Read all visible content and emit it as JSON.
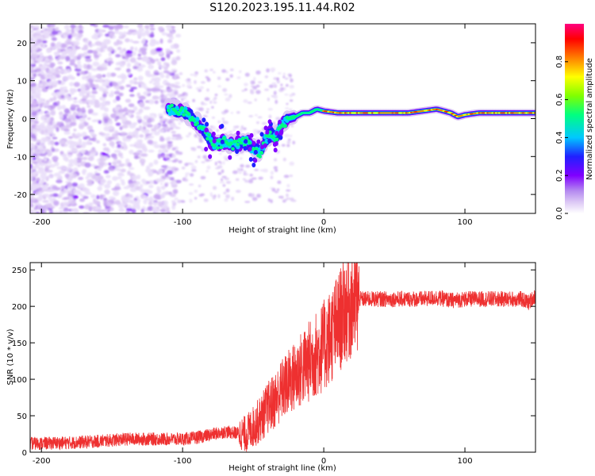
{
  "title": "S120.2023.195.11.44.R02",
  "chart_data": [
    {
      "type": "heatmap",
      "xlabel": "Height of straight line (km)",
      "ylabel": "Frequency (Hz)",
      "xlim": [
        -208,
        150
      ],
      "ylim": [
        -25,
        25
      ],
      "xticks": [
        -200,
        -100,
        0,
        100
      ],
      "yticks": [
        -20,
        -10,
        0,
        10,
        20
      ],
      "colorbar": {
        "label": "Normalized spectral amplitude",
        "range": [
          0,
          1
        ],
        "ticks": [
          0.0,
          0.2,
          0.4,
          0.6,
          0.8
        ],
        "colormap": [
          "#ffffff",
          "#dcc8f5",
          "#b488f0",
          "#8000ff",
          "#2020ff",
          "#00c8ff",
          "#00ff80",
          "#80ff00",
          "#ffff00",
          "#ff8000",
          "#ff0000",
          "#ff0080"
        ]
      },
      "ridge": [
        {
          "x": -110,
          "f": 2.5
        },
        {
          "x": -100,
          "f": 2.0
        },
        {
          "x": -92,
          "f": 0.0
        },
        {
          "x": -85,
          "f": -3.0
        },
        {
          "x": -80,
          "f": -6.0
        },
        {
          "x": -75,
          "f": -7.0
        },
        {
          "x": -70,
          "f": -6.0
        },
        {
          "x": -65,
          "f": -7.0
        },
        {
          "x": -60,
          "f": -6.5
        },
        {
          "x": -55,
          "f": -6.0
        },
        {
          "x": -50,
          "f": -8.0
        },
        {
          "x": -45,
          "f": -9.0
        },
        {
          "x": -42,
          "f": -6.0
        },
        {
          "x": -38,
          "f": -4.0
        },
        {
          "x": -34,
          "f": -5.0
        },
        {
          "x": -30,
          "f": -2.0
        },
        {
          "x": -25,
          "f": 0.0
        },
        {
          "x": -20,
          "f": 0.5
        },
        {
          "x": -15,
          "f": 1.5
        },
        {
          "x": -10,
          "f": 1.5
        },
        {
          "x": -5,
          "f": 2.5
        },
        {
          "x": 0,
          "f": 2.0
        },
        {
          "x": 10,
          "f": 1.5
        },
        {
          "x": 20,
          "f": 1.5
        },
        {
          "x": 30,
          "f": 1.5
        },
        {
          "x": 40,
          "f": 1.5
        },
        {
          "x": 50,
          "f": 1.5
        },
        {
          "x": 60,
          "f": 1.5
        },
        {
          "x": 70,
          "f": 2.0
        },
        {
          "x": 80,
          "f": 2.5
        },
        {
          "x": 90,
          "f": 1.5
        },
        {
          "x": 95,
          "f": 0.5
        },
        {
          "x": 100,
          "f": 1.0
        },
        {
          "x": 110,
          "f": 1.5
        },
        {
          "x": 120,
          "f": 1.5
        },
        {
          "x": 130,
          "f": 1.5
        },
        {
          "x": 140,
          "f": 1.5
        },
        {
          "x": 150,
          "f": 1.5
        }
      ]
    },
    {
      "type": "line",
      "xlabel": "Height of straight line (km)",
      "ylabel": "SNR (10 * v/v)",
      "xlim": [
        -208,
        150
      ],
      "ylim": [
        0,
        260
      ],
      "xticks": [
        -200,
        -100,
        0,
        100
      ],
      "yticks": [
        0,
        50,
        100,
        150,
        200,
        250
      ],
      "color": "#ee3030",
      "series": [
        {
          "x": [
            -208,
            -200,
            -180,
            -160,
            -140,
            -120,
            -100,
            -90,
            -80,
            -70,
            -60,
            -55,
            -50,
            -45,
            -40,
            -35,
            -30,
            -25,
            -20,
            -15,
            -10,
            -5,
            0,
            5,
            10,
            15,
            20,
            25,
            30,
            40,
            50,
            60,
            70,
            80,
            90,
            100,
            110,
            120,
            130,
            140,
            145,
            150
          ],
          "values": [
            12,
            12,
            13,
            15,
            18,
            18,
            18,
            20,
            24,
            28,
            26,
            25,
            35,
            45,
            60,
            70,
            85,
            95,
            105,
            115,
            125,
            135,
            145,
            160,
            175,
            195,
            205,
            210,
            210,
            210,
            210,
            210,
            210,
            212,
            208,
            210,
            210,
            210,
            210,
            210,
            205,
            215
          ]
        }
      ]
    }
  ]
}
